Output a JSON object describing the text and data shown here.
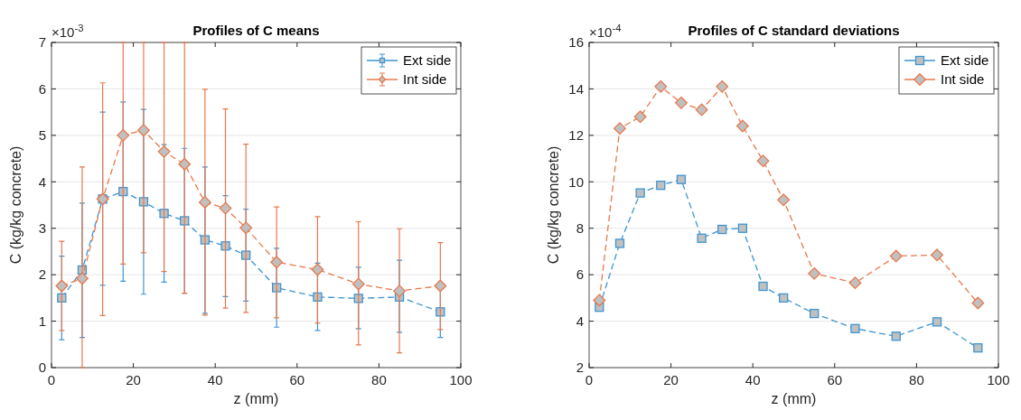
{
  "chart_data": [
    {
      "type": "line",
      "title": "Profiles of C means",
      "xlabel": "z (mm)",
      "ylabel": "C (kg/kg concrete)",
      "annotations": [
        "×10$^{-3}$"
      ],
      "x": [
        2.5,
        7.5,
        12.5,
        17.5,
        22.5,
        27.5,
        32.5,
        37.5,
        42.5,
        47.5,
        55,
        65,
        75,
        85,
        95
      ],
      "xlim": [
        0,
        100
      ],
      "xticks": [
        0,
        20,
        40,
        60,
        80,
        100
      ],
      "ylim": [
        0,
        7
      ],
      "yticks": [
        0,
        1,
        2,
        3,
        4,
        5,
        6,
        7
      ],
      "grid": "y",
      "legend": "top right",
      "line_style": "dashed",
      "series": [
        {
          "name": "Ext side",
          "color": "#3d95d2",
          "marker": "square",
          "values": [
            1.5,
            2.1,
            3.63,
            3.79,
            3.57,
            3.32,
            3.16,
            2.75,
            2.62,
            2.42,
            1.72,
            1.52,
            1.49,
            1.52,
            1.2
          ],
          "errors": [
            [
              0.6,
              2.4
            ],
            [
              0.65,
              3.54
            ],
            [
              1.77,
              5.5
            ],
            [
              1.86,
              5.72
            ],
            [
              1.58,
              5.56
            ],
            [
              1.84,
              4.8
            ],
            [
              1.6,
              4.72
            ],
            [
              1.17,
              4.32
            ],
            [
              1.53,
              3.7
            ],
            [
              1.43,
              3.41
            ],
            [
              0.87,
              2.57
            ],
            [
              0.8,
              2.25
            ],
            [
              0.84,
              2.16
            ],
            [
              0.76,
              2.31
            ],
            [
              0.65,
              1.75
            ]
          ]
        },
        {
          "name": "Int side",
          "color": "#e8784c",
          "marker": "diamond",
          "values": [
            1.76,
            1.92,
            3.63,
            5.0,
            5.11,
            4.65,
            4.38,
            3.56,
            3.43,
            3.01,
            2.27,
            2.11,
            1.8,
            1.65,
            1.76
          ],
          "errors": [
            [
              0.8,
              2.72
            ],
            [
              0,
              4.32
            ],
            [
              1.12,
              6.13
            ],
            [
              2.23,
              7
            ],
            [
              2.47,
              7
            ],
            [
              2.07,
              7
            ],
            [
              1.6,
              7
            ],
            [
              1.13,
              5.99
            ],
            [
              1.28,
              5.57
            ],
            [
              1.19,
              4.81
            ],
            [
              1.07,
              3.46
            ],
            [
              0.96,
              3.25
            ],
            [
              0.49,
              3.14
            ],
            [
              0.32,
              2.99
            ],
            [
              0.82,
              2.69
            ]
          ]
        }
      ]
    },
    {
      "type": "line",
      "title": "Profiles of C standard deviations",
      "xlabel": "z (mm)",
      "ylabel": "C (kg/kg concrete)",
      "annotations": [
        "×10$^{-4}$"
      ],
      "x": [
        2.5,
        7.5,
        12.5,
        17.5,
        22.5,
        27.5,
        32.5,
        37.5,
        42.5,
        47.5,
        55,
        65,
        75,
        85,
        95
      ],
      "xlim": [
        0,
        100
      ],
      "xticks": [
        0,
        20,
        40,
        60,
        80,
        100
      ],
      "ylim": [
        2,
        16
      ],
      "yticks": [
        2,
        4,
        6,
        8,
        10,
        12,
        14,
        16
      ],
      "grid": "y",
      "legend": "top right",
      "line_style": "dashed",
      "series": [
        {
          "name": "Ext side",
          "color": "#3d95d2",
          "marker": "square",
          "values": [
            4.6,
            7.35,
            9.52,
            9.85,
            10.1,
            7.57,
            7.95,
            8.0,
            5.5,
            5.0,
            4.33,
            3.68,
            3.35,
            3.97,
            2.85
          ]
        },
        {
          "name": "Int side",
          "color": "#e8784c",
          "marker": "diamond",
          "values": [
            4.9,
            12.3,
            12.8,
            14.1,
            13.4,
            13.1,
            14.1,
            12.4,
            10.9,
            9.22,
            6.05,
            5.65,
            6.8,
            6.85,
            4.78
          ]
        }
      ]
    }
  ]
}
